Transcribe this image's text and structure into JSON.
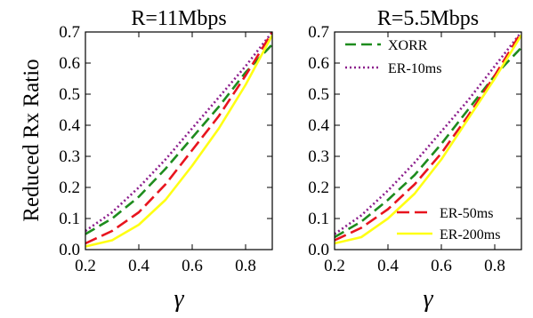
{
  "ylabel": "Reduced Rx Ratio",
  "chart_data": [
    {
      "type": "line",
      "title": "R=11Mbps",
      "xlabel": "γ",
      "ylabel": "Reduced Rx Ratio",
      "xlim": [
        0.2,
        0.9
      ],
      "ylim": [
        0,
        0.7
      ],
      "xticks": [
        "0.2",
        "0.4",
        "0.6",
        "0.8"
      ],
      "yticks": [
        "0.0",
        "0.1",
        "0.2",
        "0.3",
        "0.4",
        "0.5",
        "0.6",
        "0.7"
      ],
      "grid": false,
      "legend": [],
      "series": [
        {
          "name": "XORR",
          "color": "#1e8c1e",
          "dash": "12,6",
          "x": [
            0.2,
            0.3,
            0.4,
            0.5,
            0.6,
            0.7,
            0.8,
            0.9
          ],
          "y": [
            0.05,
            0.1,
            0.17,
            0.26,
            0.36,
            0.46,
            0.57,
            0.66
          ]
        },
        {
          "name": "ER-10ms",
          "color": "#8c1e8c",
          "dash": "2,3",
          "x": [
            0.2,
            0.3,
            0.4,
            0.5,
            0.6,
            0.7,
            0.8,
            0.9
          ],
          "y": [
            0.06,
            0.12,
            0.2,
            0.29,
            0.39,
            0.49,
            0.59,
            0.7
          ]
        },
        {
          "name": "ER-50ms",
          "color": "#e8141e",
          "dash": "14,6",
          "x": [
            0.2,
            0.3,
            0.4,
            0.5,
            0.6,
            0.7,
            0.8,
            0.9
          ],
          "y": [
            0.02,
            0.06,
            0.12,
            0.21,
            0.32,
            0.43,
            0.56,
            0.7
          ]
        },
        {
          "name": "ER-200ms",
          "color": "#ffff14",
          "dash": "",
          "x": [
            0.2,
            0.3,
            0.4,
            0.5,
            0.6,
            0.7,
            0.8,
            0.9
          ],
          "y": [
            0.01,
            0.03,
            0.08,
            0.16,
            0.27,
            0.39,
            0.53,
            0.69
          ]
        }
      ]
    },
    {
      "type": "line",
      "title": "R=5.5Mbps",
      "xlabel": "γ",
      "ylabel": "",
      "xlim": [
        0.2,
        0.9
      ],
      "ylim": [
        0,
        0.7
      ],
      "xticks": [
        "0.2",
        "0.4",
        "0.6",
        "0.8"
      ],
      "yticks": [
        "0.0",
        "0.1",
        "0.2",
        "0.3",
        "0.4",
        "0.5",
        "0.6",
        "0.7"
      ],
      "grid": false,
      "legend": [
        {
          "series": "XORR",
          "position": "top-left"
        },
        {
          "series": "ER-10ms",
          "position": "top-left"
        },
        {
          "series": "ER-50ms",
          "position": "bottom-right"
        },
        {
          "series": "ER-200ms",
          "position": "bottom-right"
        }
      ],
      "series": [
        {
          "name": "XORR",
          "color": "#1e8c1e",
          "dash": "12,6",
          "x": [
            0.2,
            0.3,
            0.4,
            0.5,
            0.6,
            0.7,
            0.8,
            0.9
          ],
          "y": [
            0.04,
            0.09,
            0.16,
            0.24,
            0.34,
            0.45,
            0.56,
            0.65
          ]
        },
        {
          "name": "ER-10ms",
          "color": "#8c1e8c",
          "dash": "2,3",
          "x": [
            0.2,
            0.3,
            0.4,
            0.5,
            0.6,
            0.7,
            0.8,
            0.9
          ],
          "y": [
            0.05,
            0.11,
            0.19,
            0.28,
            0.38,
            0.48,
            0.59,
            0.7
          ]
        },
        {
          "name": "ER-50ms",
          "color": "#e8141e",
          "dash": "14,6",
          "x": [
            0.2,
            0.3,
            0.4,
            0.5,
            0.6,
            0.7,
            0.8,
            0.9
          ],
          "y": [
            0.03,
            0.07,
            0.13,
            0.21,
            0.31,
            0.43,
            0.56,
            0.7
          ]
        },
        {
          "name": "ER-200ms",
          "color": "#ffff14",
          "dash": "",
          "x": [
            0.2,
            0.3,
            0.4,
            0.5,
            0.6,
            0.7,
            0.8,
            0.9
          ],
          "y": [
            0.02,
            0.04,
            0.1,
            0.18,
            0.29,
            0.42,
            0.55,
            0.69
          ]
        }
      ]
    }
  ]
}
